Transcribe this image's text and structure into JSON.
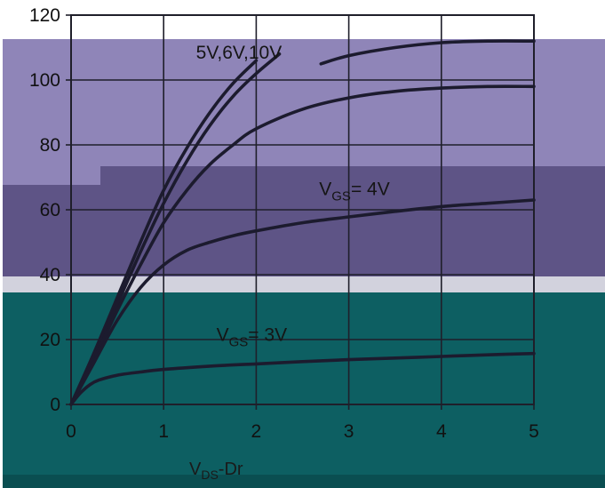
{
  "chart_data": {
    "type": "line",
    "title": "",
    "xlabel": "VDS-Dr",
    "xlabel_parts": {
      "main": "V",
      "sub": "DS",
      "rest": "-Dr"
    },
    "ylabel": "",
    "xlim": [
      0,
      5
    ],
    "ylim": [
      0,
      120
    ],
    "x_ticks": [
      "0",
      "1",
      "2",
      "3",
      "4",
      "5"
    ],
    "y_ticks": [
      "0",
      "20",
      "40",
      "60",
      "80",
      "100",
      "120"
    ],
    "grid": true,
    "legend": "none",
    "series": [
      {
        "x": [
          0,
          0.25,
          0.5,
          0.75,
          1.0,
          1.25,
          1.5,
          1.75,
          2.0
        ],
        "values": [
          0,
          16,
          33,
          50,
          66,
          79,
          90,
          99,
          106
        ]
      },
      {
        "x": [
          0,
          0.25,
          0.5,
          0.75,
          1.0,
          1.25,
          1.5,
          1.75,
          2.0,
          2.25
        ],
        "values": [
          0,
          15,
          31,
          47,
          62,
          75,
          86,
          95,
          102,
          108
        ]
      },
      {
        "x": [
          2.7,
          3.0,
          3.5,
          4.0,
          4.5,
          5.0
        ],
        "values": [
          105,
          107.5,
          110,
          111.5,
          112,
          112
        ]
      },
      {
        "x": [
          0,
          0.25,
          0.5,
          0.75,
          1.0,
          1.25,
          1.5,
          1.75,
          2.0,
          2.5,
          3.0,
          3.5,
          4.0,
          4.5,
          5.0
        ],
        "values": [
          0,
          14,
          29,
          43,
          56,
          66,
          74,
          80,
          85,
          91,
          94.5,
          96.5,
          97.5,
          98,
          98
        ]
      },
      {
        "x": [
          0,
          0.25,
          0.5,
          0.75,
          1.0,
          1.25,
          1.5,
          1.75,
          2.0,
          2.5,
          3.0,
          3.5,
          4.0,
          4.5,
          5.0
        ],
        "values": [
          0,
          13,
          26,
          36,
          43,
          47.5,
          50,
          52,
          53.5,
          56,
          57.8,
          59.5,
          61,
          62,
          63
        ]
      },
      {
        "x": [
          0,
          0.1,
          0.2,
          0.3,
          0.5,
          0.75,
          1.0,
          1.5,
          2.0,
          2.5,
          3.0,
          3.5,
          4.0,
          4.5,
          5.0
        ],
        "values": [
          0,
          3.5,
          6,
          7.5,
          9,
          10,
          10.8,
          11.8,
          12.5,
          13.2,
          13.8,
          14.3,
          14.8,
          15.3,
          15.7
        ]
      }
    ],
    "annotations": [
      {
        "text": "5V,6V,10V",
        "x": 1.35,
        "y": 108.5
      },
      {
        "main": "V",
        "sub": "GS",
        "rest": "= 4V",
        "x": 2.68,
        "y": 66.5
      },
      {
        "main": "V",
        "sub": "GS",
        "rest": "= 3V",
        "x": 1.57,
        "y": 21.5
      }
    ]
  },
  "colors": {
    "background": "#ffffff",
    "band_light": "#8f85b8",
    "band_dark": "#5e5486",
    "band_teal": "#0d5f62",
    "band_gray": "#d2d2dd",
    "curve": "#1c1b2e",
    "grid": "#1f1f2a"
  }
}
